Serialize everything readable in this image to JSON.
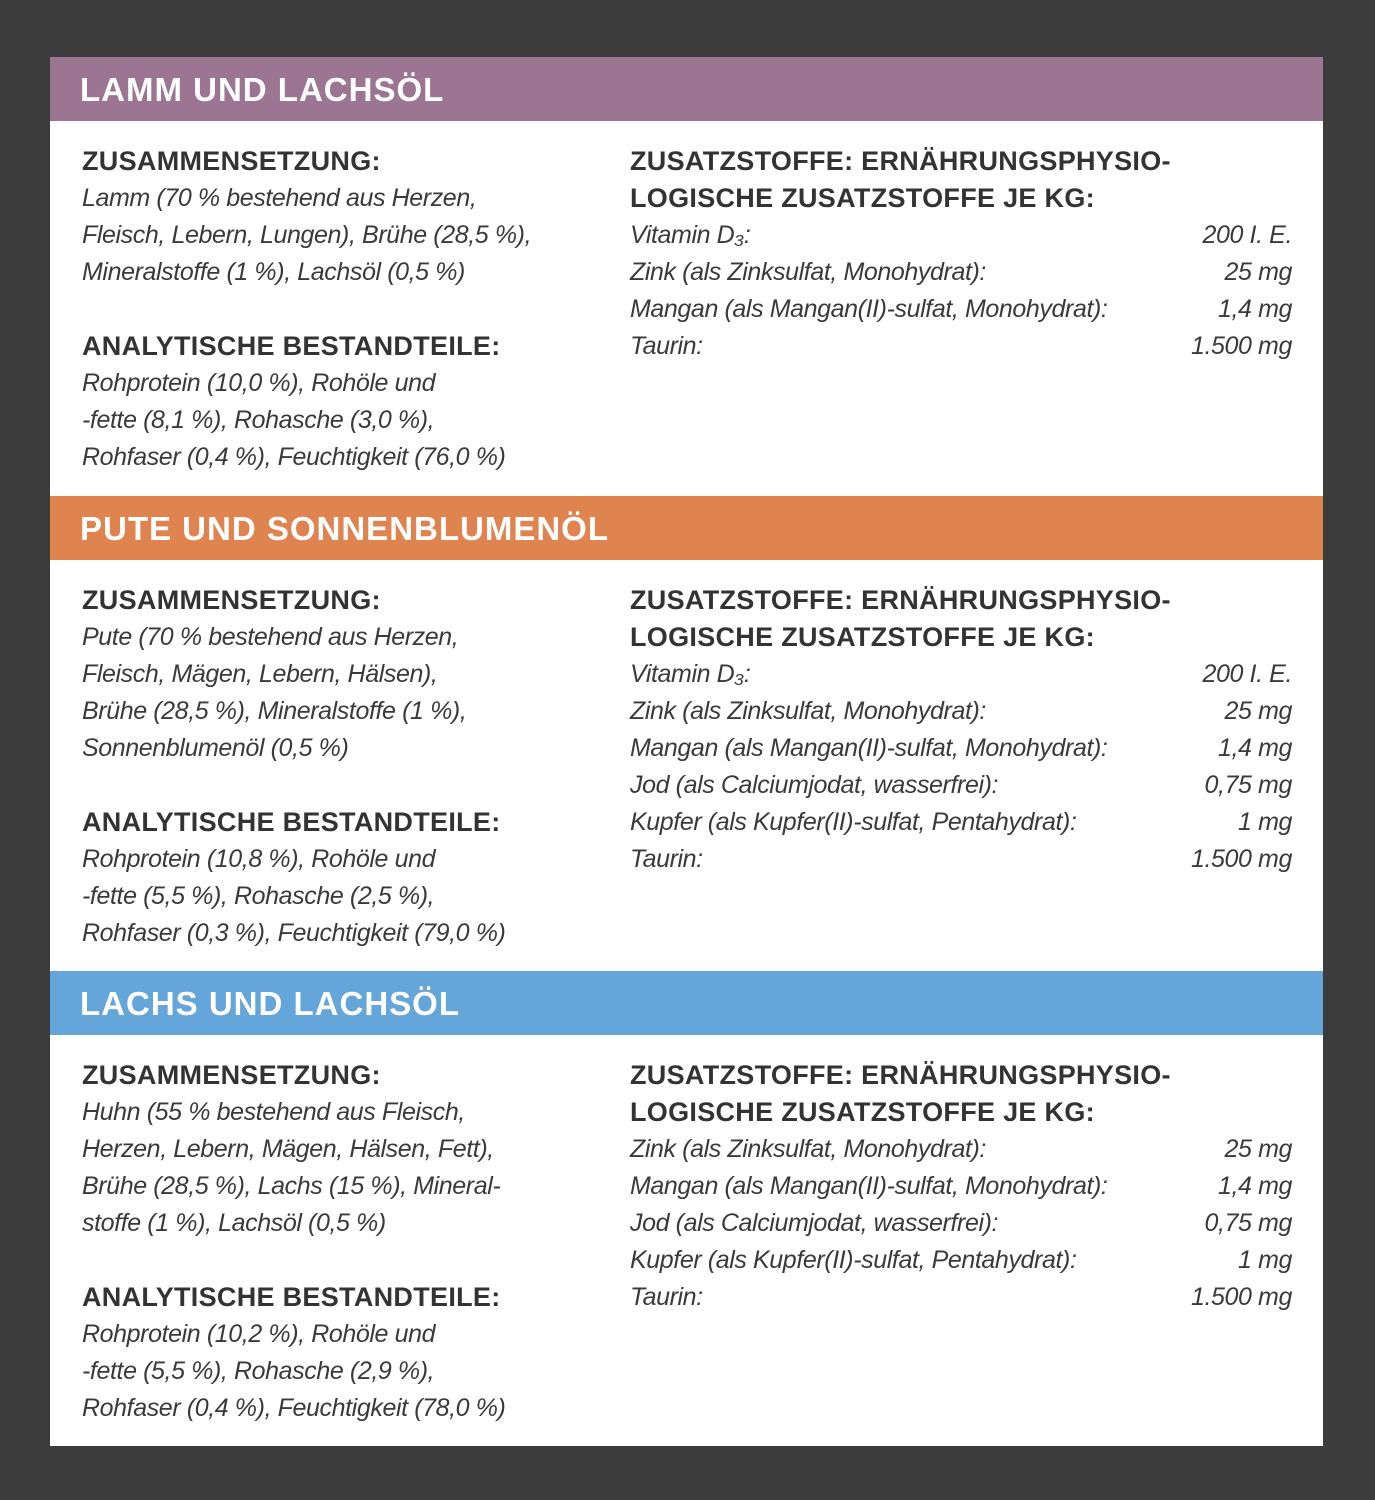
{
  "colors": {
    "background": "#3c3c3c",
    "panel": "#ffffff"
  },
  "sections": [
    {
      "title": "LAMM UND LACHSÖL",
      "color": "#9c7592",
      "height": 375,
      "composition_heading": "ZUSAMMENSETZUNG:",
      "composition_lines": [
        "Lamm (70 % bestehend aus Herzen,",
        "Fleisch, Lebern, Lungen), Brühe (28,5 %),",
        "Mineralstoffe (1 %), Lachsöl (0,5 %)"
      ],
      "analysis_heading": "ANALYTISCHE BESTANDTEILE:",
      "analysis_lines": [
        "Rohprotein (10,0 %), Rohöle und",
        "-fette (8,1 %), Rohasche (3,0 %),",
        "Rohfaser (0,4 %), Feuchtigkeit (76,0 %)"
      ],
      "additives_heading_lines": [
        "ZUSATZSTOFFE: ERNÄHRUNGSPHYSIO-",
        "LOGISCHE ZUSATZSTOFFE JE KG:"
      ],
      "additives": [
        {
          "name": "Vitamin D₃:",
          "amount": "200 I. E."
        },
        {
          "name": "Zink (als Zinksulfat, Monohydrat):",
          "amount": "25 mg"
        },
        {
          "name": "Mangan (als Mangan(II)-sulfat, Monohydrat):",
          "amount": "1,4 mg"
        },
        {
          "name": "Taurin:",
          "amount": "1.500 mg"
        }
      ]
    },
    {
      "title": "PUTE UND SONNENBLUMENÖL",
      "color": "#e0844f",
      "height": 411,
      "composition_heading": "ZUSAMMENSETZUNG:",
      "composition_lines": [
        "Pute (70 % bestehend aus Herzen,",
        "Fleisch, Mägen, Lebern, Hälsen),",
        "Brühe (28,5 %), Mineralstoffe (1 %),",
        "Sonnenblumenöl (0,5 %)"
      ],
      "analysis_heading": "ANALYTISCHE BESTANDTEILE:",
      "analysis_lines": [
        "Rohprotein (10,8 %), Rohöle und",
        "-fette (5,5 %), Rohasche (2,5 %),",
        "Rohfaser (0,3 %), Feuchtigkeit (79,0 %)"
      ],
      "additives_heading_lines": [
        "ZUSATZSTOFFE: ERNÄHRUNGSPHYSIO-",
        "LOGISCHE ZUSATZSTOFFE JE KG:"
      ],
      "additives": [
        {
          "name": "Vitamin D₃:",
          "amount": "200 I. E."
        },
        {
          "name": "Zink (als Zinksulfat, Monohydrat):",
          "amount": "25 mg"
        },
        {
          "name": "Mangan (als Mangan(II)-sulfat, Monohydrat):",
          "amount": "1,4 mg"
        },
        {
          "name": "Jod (als Calciumjodat, wasserfrei):",
          "amount": "0,75 mg"
        },
        {
          "name": "Kupfer (als Kupfer(II)-sulfat, Pentahydrat):",
          "amount": "1 mg"
        },
        {
          "name": "Taurin:",
          "amount": "1.500 mg"
        }
      ]
    },
    {
      "title": "LACHS UND LACHSÖL",
      "color": "#64a6d9",
      "height": 413,
      "composition_heading": "ZUSAMMENSETZUNG:",
      "composition_lines": [
        "Huhn (55 % bestehend aus Fleisch,",
        "Herzen, Lebern, Mägen, Hälsen, Fett),",
        "Brühe (28,5 %), Lachs (15 %), Mineral-",
        "stoffe (1 %), Lachsöl (0,5 %)"
      ],
      "analysis_heading": "ANALYTISCHE BESTANDTEILE:",
      "analysis_lines": [
        "Rohprotein (10,2 %), Rohöle und",
        "-fette (5,5 %), Rohasche (2,9 %),",
        "Rohfaser (0,4 %), Feuchtigkeit (78,0 %)"
      ],
      "additives_heading_lines": [
        "ZUSATZSTOFFE: ERNÄHRUNGSPHYSIO-",
        "LOGISCHE ZUSATZSTOFFE JE KG:"
      ],
      "additives": [
        {
          "name": "Zink (als Zinksulfat, Monohydrat):",
          "amount": "25 mg"
        },
        {
          "name": "Mangan (als Mangan(II)-sulfat, Monohydrat):",
          "amount": "1,4 mg"
        },
        {
          "name": "Jod (als Calciumjodat, wasserfrei):",
          "amount": "0,75 mg"
        },
        {
          "name": "Kupfer (als Kupfer(II)-sulfat, Pentahydrat):",
          "amount": "1 mg"
        },
        {
          "name": "Taurin:",
          "amount": "1.500 mg"
        }
      ]
    }
  ]
}
